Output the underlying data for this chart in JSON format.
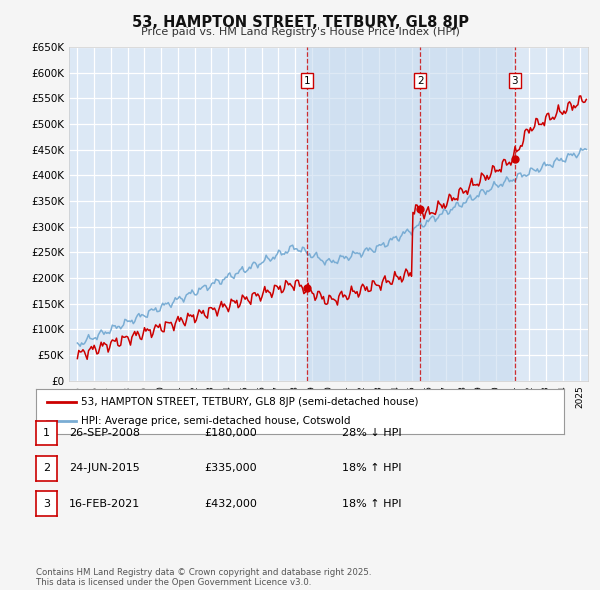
{
  "title": "53, HAMPTON STREET, TETBURY, GL8 8JP",
  "subtitle": "Price paid vs. HM Land Registry's House Price Index (HPI)",
  "ylim": [
    0,
    650000
  ],
  "yticks": [
    0,
    50000,
    100000,
    150000,
    200000,
    250000,
    300000,
    350000,
    400000,
    450000,
    500000,
    550000,
    600000,
    650000
  ],
  "xlim_start": 1994.5,
  "xlim_end": 2025.5,
  "background_color": "#f5f5f5",
  "plot_bg_color": "#dce8f5",
  "shade_bg_color": "#c8dbef",
  "grid_color": "#ffffff",
  "red_line_color": "#cc0000",
  "blue_line_color": "#7aadd4",
  "vline_color": "#cc0000",
  "sale_dates": [
    2008.74,
    2015.48,
    2021.12
  ],
  "sale_prices": [
    180000,
    335000,
    432000
  ],
  "sale_labels": [
    "1",
    "2",
    "3"
  ],
  "sale_info": [
    {
      "num": "1",
      "date": "26-SEP-2008",
      "price": "£180,000",
      "pct": "28% ↓ HPI"
    },
    {
      "num": "2",
      "date": "24-JUN-2015",
      "price": "£335,000",
      "pct": "18% ↑ HPI"
    },
    {
      "num": "3",
      "date": "16-FEB-2021",
      "price": "£432,000",
      "pct": "18% ↑ HPI"
    }
  ],
  "legend_line1": "53, HAMPTON STREET, TETBURY, GL8 8JP (semi-detached house)",
  "legend_line2": "HPI: Average price, semi-detached house, Cotswold",
  "footer": "Contains HM Land Registry data © Crown copyright and database right 2025.\nThis data is licensed under the Open Government Licence v3.0."
}
